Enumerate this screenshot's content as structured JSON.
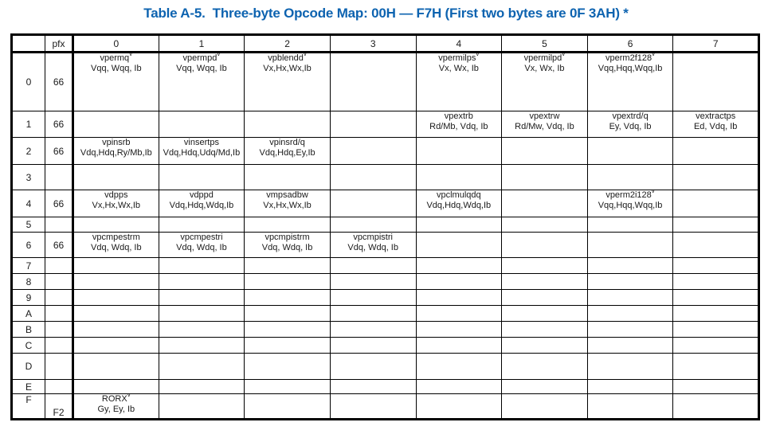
{
  "title": "Table A-5.  Three-byte Opcode Map: 00H — F7H (First two bytes are 0F 3AH) *",
  "title_color": "#0d63b0",
  "table": {
    "header": {
      "corner": "",
      "pfx": "pfx",
      "columns": [
        "0",
        "1",
        "2",
        "3",
        "4",
        "5",
        "6",
        "7"
      ]
    },
    "rows": [
      {
        "label": "0",
        "pfx": "66",
        "cells": [
          {
            "op": "vpermq",
            "sup": "v",
            "args": "Vqq, Wqq, Ib"
          },
          {
            "op": "vpermpd",
            "sup": "v",
            "args": "Vqq, Wqq, Ib"
          },
          {
            "op": "vpblendd",
            "sup": "v",
            "args": "Vx,Hx,Wx,Ib"
          },
          null,
          {
            "op": "vpermilps",
            "sup": "v",
            "args": "Vx, Wx, Ib"
          },
          {
            "op": "vpermilpd",
            "sup": "v",
            "args": "Vx, Wx, Ib"
          },
          {
            "op": "vperm2f128",
            "sup": "v",
            "args": "Vqq,Hqq,Wqq,Ib"
          },
          null
        ]
      },
      {
        "label": "1",
        "pfx": "66",
        "cells": [
          null,
          null,
          null,
          null,
          {
            "op": "vpextrb",
            "sup": "",
            "args": "Rd/Mb, Vdq, Ib"
          },
          {
            "op": "vpextrw",
            "sup": "",
            "args": "Rd/Mw, Vdq, Ib"
          },
          {
            "op": "vpextrd/q",
            "sup": "",
            "args": "Ey, Vdq, Ib"
          },
          {
            "op": "vextractps",
            "sup": "",
            "args": "Ed, Vdq, Ib"
          }
        ]
      },
      {
        "label": "2",
        "pfx": "66",
        "cells": [
          {
            "op": "vpinsrb",
            "sup": "",
            "args": "Vdq,Hdq,Ry/Mb,Ib"
          },
          {
            "op": "vinsertps",
            "sup": "",
            "args": "Vdq,Hdq,Udq/Md,Ib"
          },
          {
            "op": "vpinsrd/q",
            "sup": "",
            "args": "Vdq,Hdq,Ey,Ib"
          },
          null,
          null,
          null,
          null,
          null
        ]
      },
      {
        "label": "3",
        "pfx": "",
        "cells": [
          null,
          null,
          null,
          null,
          null,
          null,
          null,
          null
        ]
      },
      {
        "label": "4",
        "pfx": "66",
        "cells": [
          {
            "op": "vdpps",
            "sup": "",
            "args": "Vx,Hx,Wx,Ib"
          },
          {
            "op": "vdppd",
            "sup": "",
            "args": "Vdq,Hdq,Wdq,Ib"
          },
          {
            "op": "vmpsadbw",
            "sup": "",
            "args": "Vx,Hx,Wx,Ib"
          },
          null,
          {
            "op": "vpclmulqdq",
            "sup": "",
            "args": "Vdq,Hdq,Wdq,Ib"
          },
          null,
          {
            "op": "vperm2i128",
            "sup": "v",
            "args": "Vqq,Hqq,Wqq,Ib"
          },
          null
        ]
      },
      {
        "label": "5",
        "pfx": "",
        "cells": [
          null,
          null,
          null,
          null,
          null,
          null,
          null,
          null
        ]
      },
      {
        "label": "6",
        "pfx": "66",
        "cells": [
          {
            "op": "vpcmpestrm",
            "sup": "",
            "args": "Vdq, Wdq, Ib"
          },
          {
            "op": "vpcmpestri",
            "sup": "",
            "args": "Vdq, Wdq, Ib"
          },
          {
            "op": "vpcmpistrm",
            "sup": "",
            "args": "Vdq, Wdq, Ib"
          },
          {
            "op": "vpcmpistri",
            "sup": "",
            "args": "Vdq, Wdq, Ib"
          },
          null,
          null,
          null,
          null
        ]
      },
      {
        "label": "7",
        "pfx": "",
        "cells": [
          null,
          null,
          null,
          null,
          null,
          null,
          null,
          null
        ]
      },
      {
        "label": "8",
        "pfx": "",
        "cells": [
          null,
          null,
          null,
          null,
          null,
          null,
          null,
          null
        ]
      },
      {
        "label": "9",
        "pfx": "",
        "cells": [
          null,
          null,
          null,
          null,
          null,
          null,
          null,
          null
        ]
      },
      {
        "label": "A",
        "pfx": "",
        "cells": [
          null,
          null,
          null,
          null,
          null,
          null,
          null,
          null
        ]
      },
      {
        "label": "B",
        "pfx": "",
        "cells": [
          null,
          null,
          null,
          null,
          null,
          null,
          null,
          null
        ]
      },
      {
        "label": "C",
        "pfx": "",
        "cells": [
          null,
          null,
          null,
          null,
          null,
          null,
          null,
          null
        ]
      },
      {
        "label": "D",
        "pfx": "",
        "cells": [
          null,
          null,
          null,
          null,
          null,
          null,
          null,
          null
        ]
      },
      {
        "label": "E",
        "pfx": "",
        "cells": [
          null,
          null,
          null,
          null,
          null,
          null,
          null,
          null
        ]
      },
      {
        "label": "F",
        "pfx": "F2",
        "cells": [
          {
            "op": "RORX",
            "sup": "v",
            "args": "Gy, Ey, Ib"
          },
          null,
          null,
          null,
          null,
          null,
          null,
          null
        ]
      }
    ]
  }
}
